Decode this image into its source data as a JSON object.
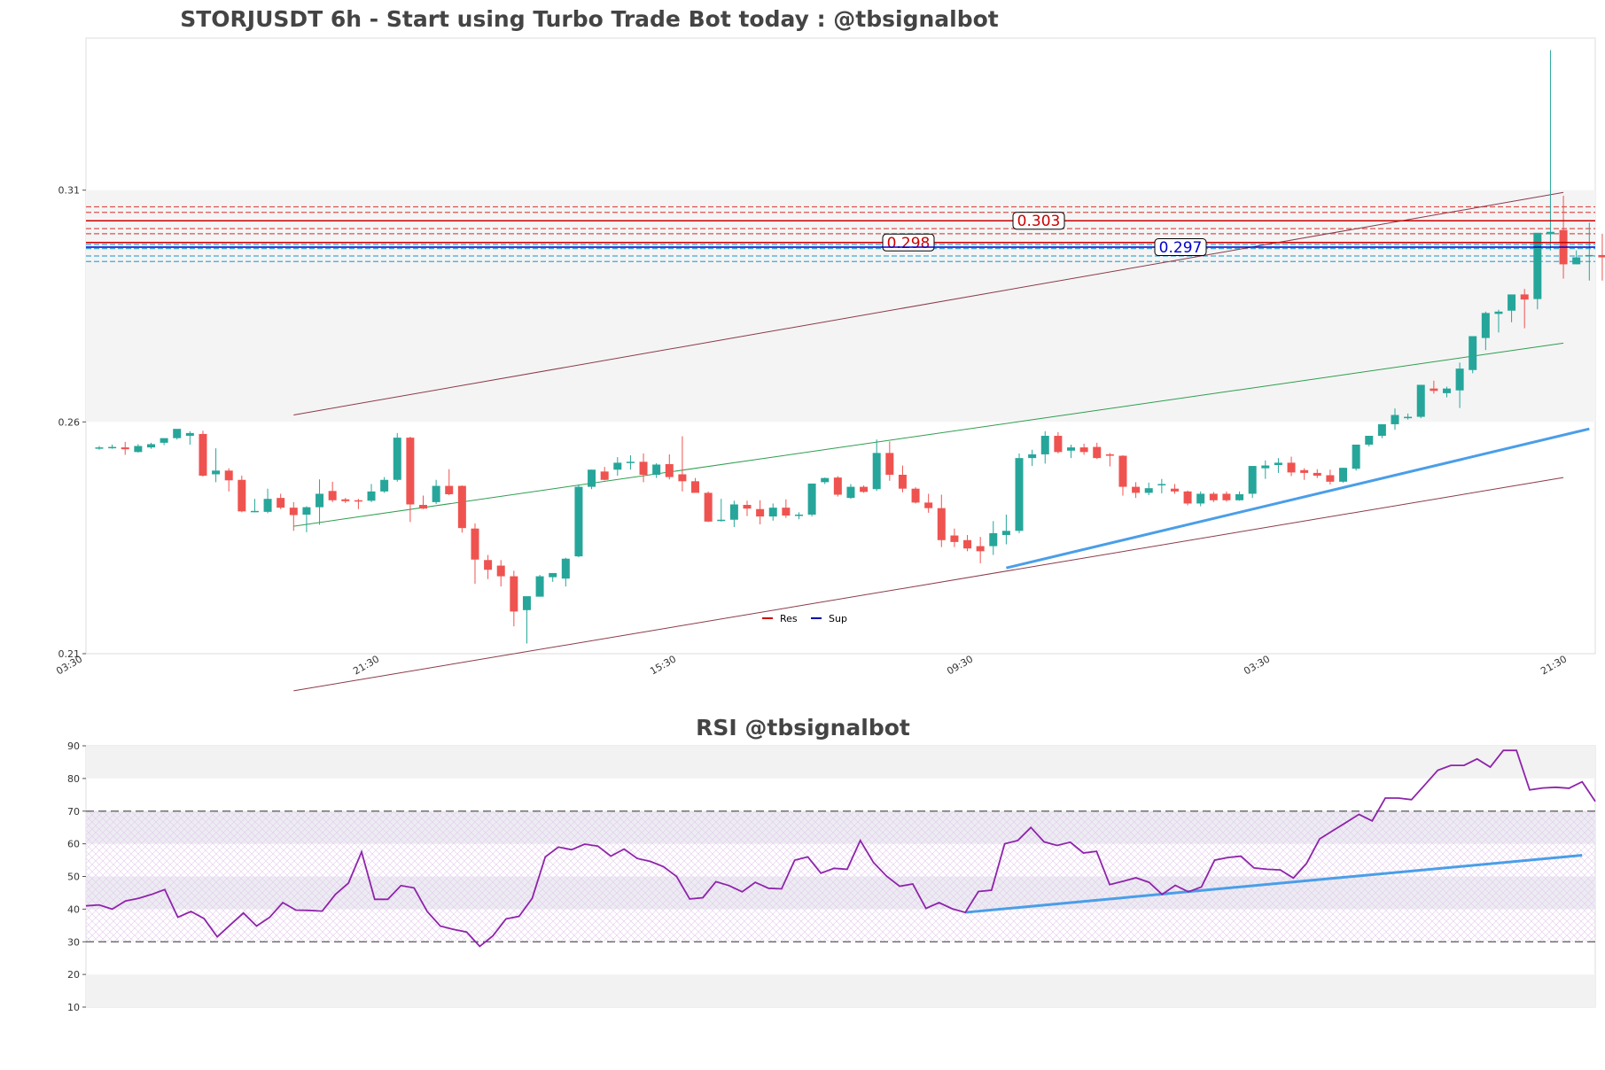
{
  "chart_data": [
    {
      "type": "candlestick",
      "title": "STORJUSDT 6h - Start using Turbo Trade Bot today : @tbsignalbot",
      "y_ticks": [
        "0.31",
        "0.26",
        "0.21"
      ],
      "ylim": [
        0.21,
        0.3428
      ],
      "x_ticks": [
        "03:30",
        "21:30",
        "15:30",
        "09:30",
        "03:30",
        "21:30"
      ],
      "legend": {
        "placement": "bottom-center",
        "items": [
          {
            "label": "Res",
            "color": "#cc0000"
          },
          {
            "label": "Sup",
            "color": "#0000aa"
          }
        ]
      },
      "levels": [
        {
          "label": "0.303",
          "value": 0.3034,
          "color": "#cc0000"
        },
        {
          "label": "0.298",
          "value": 0.2987,
          "color": "#cc0000"
        },
        {
          "label": "0.297",
          "value": 0.2977,
          "color": "#0000cc"
        }
      ],
      "band_levels": [
        0.3064,
        0.3052,
        0.3017,
        0.3006,
        0.2983,
        0.2974,
        0.2958,
        0.2946
      ],
      "shaded_zone": [
        0.26,
        0.31
      ],
      "trendlines": [
        {
          "name": "upper-channel",
          "color": "#8b3a4a",
          "from": [
            15,
            0.2615
          ],
          "to": [
            113,
            0.3095
          ]
        },
        {
          "name": "middle-channel",
          "color": "#2e9e4f",
          "from": [
            15,
            0.2375
          ],
          "to": [
            113,
            0.277
          ]
        },
        {
          "name": "lower-channel",
          "color": "#8b3a4a",
          "from": [
            15,
            0.202
          ],
          "to": [
            113,
            0.248
          ]
        },
        {
          "name": "support-trend",
          "color": "#4a9ee8",
          "from": [
            70,
            0.2285
          ],
          "to": [
            115,
            0.2585
          ]
        }
      ],
      "candles": [
        [
          0.2545,
          0.2548,
          0.2545,
          0.254
        ],
        [
          0.2545,
          0.2551,
          0.2546,
          0.2542
        ],
        [
          0.2545,
          0.2557,
          0.2541,
          0.2529
        ],
        [
          0.2535,
          0.2552,
          0.2548,
          0.2534
        ],
        [
          0.2545,
          0.2555,
          0.2552,
          0.2542
        ],
        [
          0.2555,
          0.2563,
          0.2565,
          0.255
        ],
        [
          0.2565,
          0.2571,
          0.2585,
          0.2562
        ],
        [
          0.257,
          0.258,
          0.2576,
          0.2551
        ],
        [
          0.2574,
          0.2581,
          0.2484,
          0.2482
        ],
        [
          0.2487,
          0.2543,
          0.2495,
          0.247
        ],
        [
          0.2495,
          0.25,
          0.2474,
          0.245
        ],
        [
          0.2475,
          0.2484,
          0.2407,
          0.2405
        ],
        [
          0.2407,
          0.2434,
          0.2408,
          0.2405
        ],
        [
          0.2406,
          0.2456,
          0.2434,
          0.2403
        ],
        [
          0.2436,
          0.2445,
          0.2415,
          0.2412
        ],
        [
          0.2415,
          0.2427,
          0.2399,
          0.2365
        ],
        [
          0.24,
          0.2418,
          0.2416,
          0.2362
        ],
        [
          0.2416,
          0.2476,
          0.2445,
          0.2378
        ],
        [
          0.2451,
          0.2471,
          0.2431,
          0.2427
        ],
        [
          0.2433,
          0.2436,
          0.2429,
          0.2425
        ],
        [
          0.2431,
          0.2434,
          0.2429,
          0.2412
        ],
        [
          0.243,
          0.2466,
          0.245,
          0.2427
        ],
        [
          0.245,
          0.2481,
          0.2475,
          0.2447
        ],
        [
          0.2475,
          0.2576,
          0.2566,
          0.2471
        ],
        [
          0.2566,
          0.2568,
          0.2422,
          0.2384
        ],
        [
          0.2421,
          0.2441,
          0.2413,
          0.2412
        ],
        [
          0.2427,
          0.2475,
          0.2462,
          0.2423
        ],
        [
          0.2462,
          0.2498,
          0.2444,
          0.2442
        ],
        [
          0.2462,
          0.2463,
          0.2371,
          0.2361
        ],
        [
          0.237,
          0.2381,
          0.2303,
          0.2251
        ],
        [
          0.2302,
          0.2313,
          0.2281,
          0.2261
        ],
        [
          0.229,
          0.2302,
          0.2267,
          0.2245
        ],
        [
          0.2267,
          0.2279,
          0.2191,
          0.2159
        ],
        [
          0.2194,
          0.2198,
          0.2224,
          0.2122
        ],
        [
          0.2223,
          0.227,
          0.2267,
          0.2223
        ],
        [
          0.2265,
          0.227,
          0.2274,
          0.2255
        ],
        [
          0.2262,
          0.2307,
          0.2305,
          0.2245
        ],
        [
          0.231,
          0.2465,
          0.246,
          0.2308
        ],
        [
          0.246,
          0.2497,
          0.2497,
          0.2455
        ],
        [
          0.2493,
          0.2503,
          0.2475,
          0.2474
        ],
        [
          0.2497,
          0.2524,
          0.2512,
          0.2484
        ],
        [
          0.2512,
          0.2528,
          0.2514,
          0.2497
        ],
        [
          0.2514,
          0.2532,
          0.2486,
          0.247
        ],
        [
          0.2486,
          0.2511,
          0.2508,
          0.2479
        ],
        [
          0.2509,
          0.253,
          0.2481,
          0.2476
        ],
        [
          0.2487,
          0.2569,
          0.2472,
          0.245
        ],
        [
          0.2472,
          0.2479,
          0.2447,
          0.2449
        ],
        [
          0.2447,
          0.245,
          0.2385,
          0.2384
        ],
        [
          0.2387,
          0.2434,
          0.2389,
          0.2385
        ],
        [
          0.2389,
          0.243,
          0.2422,
          0.2373
        ],
        [
          0.2421,
          0.243,
          0.2413,
          0.2397
        ],
        [
          0.2412,
          0.2431,
          0.2396,
          0.2379
        ],
        [
          0.2396,
          0.2424,
          0.2415,
          0.2387
        ],
        [
          0.2415,
          0.2433,
          0.2398,
          0.2393
        ],
        [
          0.2399,
          0.2405,
          0.24,
          0.239
        ],
        [
          0.24,
          0.2467,
          0.2467,
          0.2396
        ],
        [
          0.247,
          0.248,
          0.2479,
          0.2466
        ],
        [
          0.248,
          0.2483,
          0.2443,
          0.2439
        ],
        [
          0.2436,
          0.2466,
          0.246,
          0.2434
        ],
        [
          0.246,
          0.2463,
          0.2449,
          0.2447
        ],
        [
          0.2455,
          0.2562,
          0.2533,
          0.2451
        ],
        [
          0.2533,
          0.2558,
          0.2486,
          0.2473
        ],
        [
          0.2486,
          0.2506,
          0.2456,
          0.2448
        ],
        [
          0.2456,
          0.2459,
          0.2426,
          0.2424
        ],
        [
          0.2426,
          0.2445,
          0.2414,
          0.2404
        ],
        [
          0.2414,
          0.2443,
          0.2345,
          0.233
        ],
        [
          0.2355,
          0.237,
          0.2341,
          0.233
        ],
        [
          0.2345,
          0.2356,
          0.2327,
          0.2321
        ],
        [
          0.2332,
          0.2352,
          0.2321,
          0.2295
        ],
        [
          0.2332,
          0.2386,
          0.236,
          0.2313
        ],
        [
          0.2356,
          0.24,
          0.2365,
          0.2336
        ],
        [
          0.2365,
          0.2532,
          0.2522,
          0.236
        ],
        [
          0.2522,
          0.254,
          0.253,
          0.2505
        ],
        [
          0.253,
          0.258,
          0.257,
          0.251
        ],
        [
          0.257,
          0.2578,
          0.2535,
          0.2532
        ],
        [
          0.2538,
          0.2551,
          0.2545,
          0.2522
        ],
        [
          0.2545,
          0.2553,
          0.2535,
          0.2529
        ],
        [
          0.2546,
          0.2555,
          0.2522,
          0.252
        ],
        [
          0.253,
          0.2533,
          0.2527,
          0.2504
        ],
        [
          0.2527,
          0.2528,
          0.246,
          0.2441
        ],
        [
          0.246,
          0.247,
          0.2447,
          0.2436
        ],
        [
          0.2447,
          0.2469,
          0.2457,
          0.2442
        ],
        [
          0.2464,
          0.2477,
          0.2466,
          0.2446
        ],
        [
          0.2456,
          0.2466,
          0.245,
          0.2445
        ],
        [
          0.245,
          0.2452,
          0.2424,
          0.242
        ],
        [
          0.2424,
          0.245,
          0.2445,
          0.2418
        ],
        [
          0.2445,
          0.2449,
          0.2431,
          0.2427
        ],
        [
          0.2445,
          0.245,
          0.2431,
          0.2428
        ],
        [
          0.2431,
          0.245,
          0.2444,
          0.243
        ],
        [
          0.2445,
          0.2504,
          0.2505,
          0.2436
        ],
        [
          0.25,
          0.2517,
          0.2506,
          0.2477
        ],
        [
          0.2507,
          0.2522,
          0.2512,
          0.249
        ],
        [
          0.2512,
          0.2525,
          0.2491,
          0.2483
        ],
        [
          0.2496,
          0.25,
          0.249,
          0.2475
        ],
        [
          0.249,
          0.2498,
          0.2484,
          0.2479
        ],
        [
          0.2485,
          0.2497,
          0.2471,
          0.2465
        ],
        [
          0.2471,
          0.2501,
          0.2501,
          0.2469
        ],
        [
          0.2499,
          0.2546,
          0.2551,
          0.2495
        ],
        [
          0.2551,
          0.257,
          0.257,
          0.2547
        ],
        [
          0.257,
          0.2595,
          0.2595,
          0.2565
        ],
        [
          0.2595,
          0.2629,
          0.2615,
          0.2583
        ],
        [
          0.2608,
          0.2618,
          0.2611,
          0.2605
        ],
        [
          0.2611,
          0.268,
          0.268,
          0.2608
        ],
        [
          0.2672,
          0.2689,
          0.2667,
          0.2661
        ],
        [
          0.2662,
          0.2676,
          0.2672,
          0.2653
        ],
        [
          0.2668,
          0.2728,
          0.2715,
          0.263
        ],
        [
          0.2712,
          0.2782,
          0.2785,
          0.2705
        ],
        [
          0.2781,
          0.2838,
          0.2835,
          0.2755
        ],
        [
          0.2833,
          0.2842,
          0.2838,
          0.2793
        ],
        [
          0.284,
          0.2864,
          0.2875,
          0.2815
        ],
        [
          0.2875,
          0.2887,
          0.2864,
          0.2802
        ],
        [
          0.2865,
          0.2903,
          0.3008,
          0.2843
        ],
        [
          0.3005,
          0.3402,
          0.301,
          0.297
        ],
        [
          0.3014,
          0.3088,
          0.294,
          0.2909
        ],
        [
          0.294,
          0.297,
          0.2955,
          0.294
        ],
        [
          0.2958,
          0.303,
          0.296,
          0.2905
        ],
        [
          0.296,
          0.3006,
          0.2955,
          0.2905
        ],
        [
          0.2958,
          0.3,
          0.2993,
          0.2932
        ],
        [
          0.296,
          0.296,
          0.296,
          0.2925
        ]
      ]
    },
    {
      "type": "line",
      "title": "RSI @tbsignalbot",
      "y_ticks": [
        "90",
        "80",
        "70",
        "60",
        "50",
        "40",
        "30",
        "20",
        "10"
      ],
      "ylim": [
        10,
        90
      ],
      "overbought": 70,
      "oversold": 30,
      "line_color": "#8e24aa",
      "values": [
        41,
        41.3,
        40,
        42.5,
        43.3,
        44.5,
        46,
        37.5,
        39.3,
        37.1,
        31.5,
        35.2,
        38.8,
        34.8,
        37.5,
        42,
        39.7,
        39.6,
        39.4,
        44.5,
        48,
        57.5,
        43,
        43,
        47.2,
        46.5,
        39.3,
        34.8,
        33.8,
        33,
        28.6,
        31.8,
        37,
        37.8,
        43.3,
        56,
        59,
        58.2,
        59.9,
        59.3,
        56.2,
        58.4,
        55.5,
        54.6,
        53,
        50,
        43.1,
        43.5,
        48.4,
        47.2,
        45.3,
        48.2,
        46.4,
        46.2,
        55,
        56,
        51,
        52.5,
        52.2,
        61,
        54.3,
        50.1,
        47,
        47.7,
        40.2,
        42,
        40.1,
        39,
        45.4,
        45.8,
        60,
        61,
        65,
        60.6,
        59.5,
        60.5,
        57.2,
        57.7,
        47.5,
        48.5,
        49.6,
        48.2,
        44.5,
        47.3,
        45.3,
        46.8,
        55,
        55.8,
        56.2,
        52.6,
        52.2,
        52,
        49.5,
        54,
        61.5,
        64,
        66.5,
        69,
        67,
        74,
        74,
        73.5,
        78,
        82.5,
        84,
        84,
        86,
        83.5,
        88.6,
        88.6,
        76.5,
        77.1,
        77.3,
        77,
        79,
        73
      ],
      "trendline": {
        "color": "#4a9ee8",
        "from": [
          67,
          39
        ],
        "to": [
          114,
          56.5
        ]
      }
    }
  ]
}
